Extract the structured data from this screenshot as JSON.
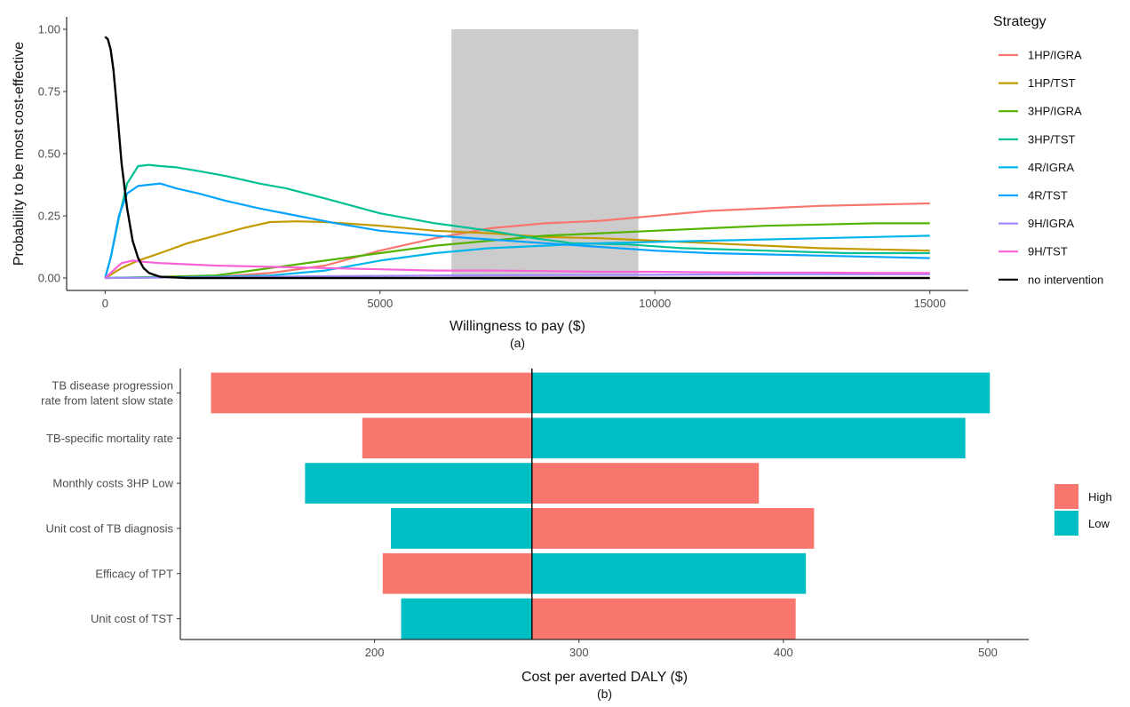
{
  "chart_data": [
    {
      "type": "line",
      "caption": "(a)",
      "xlabel": "Willingness to pay ($)",
      "ylabel": "Probability to be most cost-effective",
      "xlim": [
        -700,
        15700
      ],
      "ylim": [
        -0.05,
        1.05
      ],
      "xticks": [
        0,
        5000,
        10000,
        15000
      ],
      "xtick_labels": [
        "0",
        "5000",
        "10000",
        "15000"
      ],
      "yticks": [
        0,
        0.25,
        0.5,
        0.75,
        1.0
      ],
      "ytick_labels": [
        "0.00",
        "0.25",
        "0.50",
        "0.75",
        "1.00"
      ],
      "grid": false,
      "legend_title": "Strategy",
      "legend_position": "right",
      "shaded_region": {
        "x": [
          6300,
          9700
        ],
        "y": [
          0,
          1
        ],
        "color": "#cccccc"
      },
      "series": [
        {
          "name": "1HP/IGRA",
          "color": "#F8766D",
          "x": [
            0,
            2000,
            3000,
            4000,
            5000,
            6000,
            7000,
            8000,
            9000,
            10000,
            11000,
            12000,
            13000,
            14000,
            15000
          ],
          "y": [
            0,
            0.005,
            0.02,
            0.05,
            0.11,
            0.16,
            0.2,
            0.22,
            0.23,
            0.25,
            0.27,
            0.28,
            0.29,
            0.295,
            0.3
          ]
        },
        {
          "name": "1HP/TST",
          "color": "#C49A00",
          "x": [
            0,
            300,
            600,
            1000,
            1500,
            2000,
            2500,
            3000,
            3500,
            4000,
            5000,
            6000,
            7000,
            8000,
            9000,
            10000,
            11000,
            12000,
            13000,
            14000,
            15000
          ],
          "y": [
            0,
            0.04,
            0.07,
            0.1,
            0.14,
            0.17,
            0.2,
            0.225,
            0.228,
            0.225,
            0.21,
            0.19,
            0.18,
            0.165,
            0.16,
            0.15,
            0.14,
            0.13,
            0.12,
            0.115,
            0.11
          ]
        },
        {
          "name": "3HP/IGRA",
          "color": "#53B400",
          "x": [
            0,
            2000,
            3000,
            4000,
            5000,
            6000,
            7000,
            8000,
            9000,
            10000,
            11000,
            12000,
            13000,
            14000,
            15000
          ],
          "y": [
            0,
            0.01,
            0.04,
            0.07,
            0.1,
            0.13,
            0.15,
            0.17,
            0.18,
            0.19,
            0.2,
            0.21,
            0.215,
            0.22,
            0.22
          ]
        },
        {
          "name": "3HP/TST",
          "color": "#00C094",
          "x": [
            0,
            100,
            250,
            400,
            600,
            800,
            1000,
            1300,
            1700,
            2200,
            2800,
            3300,
            4000,
            5000,
            6000,
            7000,
            7800,
            8500,
            9500,
            10500,
            12000,
            13500,
            15000
          ],
          "y": [
            0,
            0.08,
            0.24,
            0.38,
            0.45,
            0.455,
            0.45,
            0.445,
            0.43,
            0.41,
            0.38,
            0.36,
            0.32,
            0.26,
            0.22,
            0.19,
            0.16,
            0.14,
            0.135,
            0.12,
            0.11,
            0.1,
            0.1
          ]
        },
        {
          "name": "4R/IGRA",
          "color": "#00B6EB",
          "x": [
            0,
            2000,
            3000,
            4000,
            5000,
            6000,
            7000,
            8000,
            9000,
            10000,
            11000,
            12000,
            13000,
            14000,
            15000
          ],
          "y": [
            0,
            0.005,
            0.01,
            0.03,
            0.07,
            0.1,
            0.12,
            0.13,
            0.14,
            0.145,
            0.15,
            0.155,
            0.16,
            0.165,
            0.17
          ]
        },
        {
          "name": "4R/TST",
          "color": "#06A4FF",
          "x": [
            0,
            100,
            250,
            400,
            600,
            800,
            1000,
            1300,
            1700,
            2200,
            2800,
            3500,
            4200,
            5000,
            6000,
            7000,
            8000,
            9000,
            10000,
            11000,
            12000,
            13000,
            14000,
            15000
          ],
          "y": [
            0,
            0.08,
            0.25,
            0.34,
            0.37,
            0.375,
            0.38,
            0.36,
            0.34,
            0.31,
            0.28,
            0.25,
            0.22,
            0.19,
            0.17,
            0.155,
            0.14,
            0.125,
            0.11,
            0.1,
            0.095,
            0.09,
            0.085,
            0.08
          ]
        },
        {
          "name": "9H/IGRA",
          "color": "#A58AFF",
          "x": [
            0,
            2000,
            4000,
            6000,
            8000,
            10000,
            12000,
            14000,
            15000
          ],
          "y": [
            0,
            0.003,
            0.007,
            0.01,
            0.012,
            0.013,
            0.015,
            0.015,
            0.015
          ]
        },
        {
          "name": "9H/TST",
          "color": "#FB61D7",
          "x": [
            0,
            150,
            300,
            500,
            700,
            1000,
            1500,
            2000,
            3000,
            4000,
            5000,
            6000,
            7000,
            8000,
            9000,
            10000,
            11000,
            12000,
            13000,
            14000,
            15000
          ],
          "y": [
            0,
            0.03,
            0.06,
            0.07,
            0.065,
            0.06,
            0.055,
            0.05,
            0.045,
            0.04,
            0.035,
            0.03,
            0.03,
            0.028,
            0.025,
            0.025,
            0.023,
            0.022,
            0.022,
            0.02,
            0.02
          ]
        },
        {
          "name": "no intervention",
          "color": "#000000",
          "x": [
            0,
            50,
            100,
            150,
            200,
            250,
            300,
            400,
            500,
            600,
            700,
            800,
            1000,
            1500,
            2000,
            5000,
            10000,
            15000
          ],
          "y": [
            0.97,
            0.96,
            0.92,
            0.84,
            0.72,
            0.59,
            0.46,
            0.28,
            0.15,
            0.08,
            0.04,
            0.02,
            0.005,
            0,
            0,
            0,
            0,
            0
          ]
        }
      ]
    },
    {
      "type": "bar",
      "orientation": "horizontal",
      "caption": "(b)",
      "xlabel": "Cost per averted DALY ($)",
      "ylabel": "",
      "xlim": [
        105,
        520
      ],
      "xticks": [
        200,
        300,
        400,
        500
      ],
      "xtick_labels": [
        "200",
        "300",
        "400",
        "500"
      ],
      "base_value": 277,
      "grid": false,
      "legend_position": "right",
      "legend": [
        {
          "name": "High",
          "color": "#F8766D"
        },
        {
          "name": "Low",
          "color": "#00BFC4"
        }
      ],
      "categories": [
        "TB disease progression\nrate from latent slow state",
        "TB-specific mortality rate",
        "Monthly costs 3HP Low",
        "Unit cost of TB diagnosis",
        "Efficacy of TPT",
        "Unit cost of TST"
      ],
      "category_lines": [
        [
          "TB disease progression",
          "rate from latent slow state"
        ],
        [
          "TB-specific mortality rate"
        ],
        [
          "Monthly costs 3HP Low"
        ],
        [
          "Unit cost of TB diagnosis"
        ],
        [
          "Efficacy of TPT"
        ],
        [
          "Unit cost of TST"
        ]
      ],
      "bars": [
        {
          "category": "TB disease progression\nrate from latent slow state",
          "left": {
            "value": 120,
            "series": "High"
          },
          "right": {
            "value": 501,
            "series": "Low"
          }
        },
        {
          "category": "TB-specific mortality rate",
          "left": {
            "value": 194,
            "series": "High"
          },
          "right": {
            "value": 489,
            "series": "Low"
          }
        },
        {
          "category": "Monthly costs 3HP Low",
          "left": {
            "value": 166,
            "series": "Low"
          },
          "right": {
            "value": 388,
            "series": "High"
          }
        },
        {
          "category": "Unit cost of TB diagnosis",
          "left": {
            "value": 208,
            "series": "Low"
          },
          "right": {
            "value": 415,
            "series": "High"
          }
        },
        {
          "category": "Efficacy of TPT",
          "left": {
            "value": 204,
            "series": "High"
          },
          "right": {
            "value": 411,
            "series": "Low"
          }
        },
        {
          "category": "Unit cost of TST",
          "left": {
            "value": 213,
            "series": "Low"
          },
          "right": {
            "value": 406,
            "series": "High"
          }
        }
      ]
    }
  ]
}
